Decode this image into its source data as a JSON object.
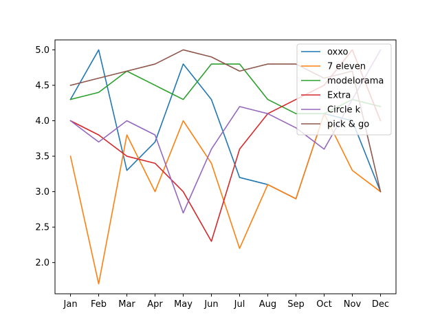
{
  "chart_data": {
    "type": "line",
    "title": "",
    "xlabel": "",
    "ylabel": "",
    "categories": [
      "Jan",
      "Feb",
      "Mar",
      "Apr",
      "May",
      "Jun",
      "Jul",
      "Aug",
      "Sep",
      "Oct",
      "Nov",
      "Dec"
    ],
    "ylim": [
      1.56,
      5.14
    ],
    "yticks": [
      "2.0",
      "2.5",
      "3.0",
      "3.5",
      "4.0",
      "4.5",
      "5.0"
    ],
    "grid": false,
    "legend_position": "top-right",
    "series": [
      {
        "name": "oxxo",
        "color": "#1f77b4",
        "values": [
          4.3,
          5.0,
          3.3,
          3.7,
          4.8,
          4.3,
          3.2,
          3.1,
          2.9,
          4.1,
          4.0,
          3.0
        ]
      },
      {
        "name": "7 eleven",
        "color": "#ff7f0e",
        "values": [
          3.5,
          1.7,
          3.8,
          3.0,
          4.0,
          3.4,
          2.2,
          3.1,
          2.9,
          4.1,
          3.3,
          3.0
        ]
      },
      {
        "name": "modelorama",
        "color": "#2ca02c",
        "values": [
          4.3,
          4.4,
          4.7,
          4.5,
          4.3,
          4.8,
          4.8,
          4.3,
          4.1,
          4.1,
          4.3,
          4.2
        ]
      },
      {
        "name": "Extra",
        "color": "#d62728",
        "values": [
          4.0,
          3.8,
          3.5,
          3.4,
          3.0,
          2.3,
          3.6,
          4.1,
          4.3,
          4.5,
          5.0,
          4.0
        ]
      },
      {
        "name": "Circle k",
        "color": "#9467bd",
        "values": [
          4.0,
          3.7,
          4.0,
          3.8,
          2.7,
          3.6,
          4.2,
          4.1,
          3.9,
          3.6,
          4.3,
          5.0
        ]
      },
      {
        "name": "pick & go",
        "color": "#8c564b",
        "values": [
          4.5,
          4.6,
          4.7,
          4.8,
          5.0,
          4.9,
          4.7,
          4.8,
          4.8,
          4.6,
          4.7,
          3.0
        ]
      }
    ]
  }
}
